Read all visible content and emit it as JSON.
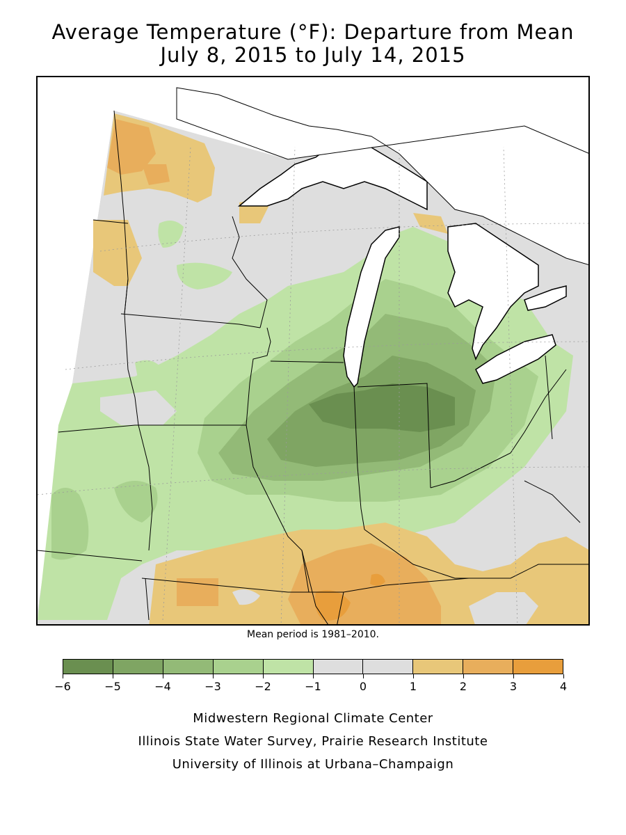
{
  "title": {
    "line1": "Average Temperature (°F): Departure from Mean",
    "line2": "July 8, 2015 to July 14, 2015"
  },
  "mean_note": "Mean period is 1981–2010.",
  "legend": {
    "colors": [
      "#6a8f50",
      "#7fa563",
      "#93ba77",
      "#a9d18e",
      "#bfe3a6",
      "#dedede",
      "#dedede",
      "#e8c779",
      "#e8ae5c",
      "#e89e3c"
    ],
    "ticks": [
      "−6",
      "−5",
      "−4",
      "−3",
      "−2",
      "−1",
      "0",
      "1",
      "2",
      "3",
      "4"
    ]
  },
  "map_colors": {
    "neutral": "#dedede",
    "cool1": "#bfe3a6",
    "cool2": "#a9d18e",
    "cool3": "#93ba77",
    "cool4": "#7fa563",
    "cool5": "#6a8f50",
    "warm1": "#e8c779",
    "warm2": "#e8ae5c",
    "warm3": "#e89e3c",
    "water": "#ffffff"
  },
  "credits": {
    "line1": "Midwestern Regional Climate Center",
    "line2": "Illinois State Water Survey, Prairie Research Institute",
    "line3": "University of Illinois at Urbana–Champaign"
  }
}
